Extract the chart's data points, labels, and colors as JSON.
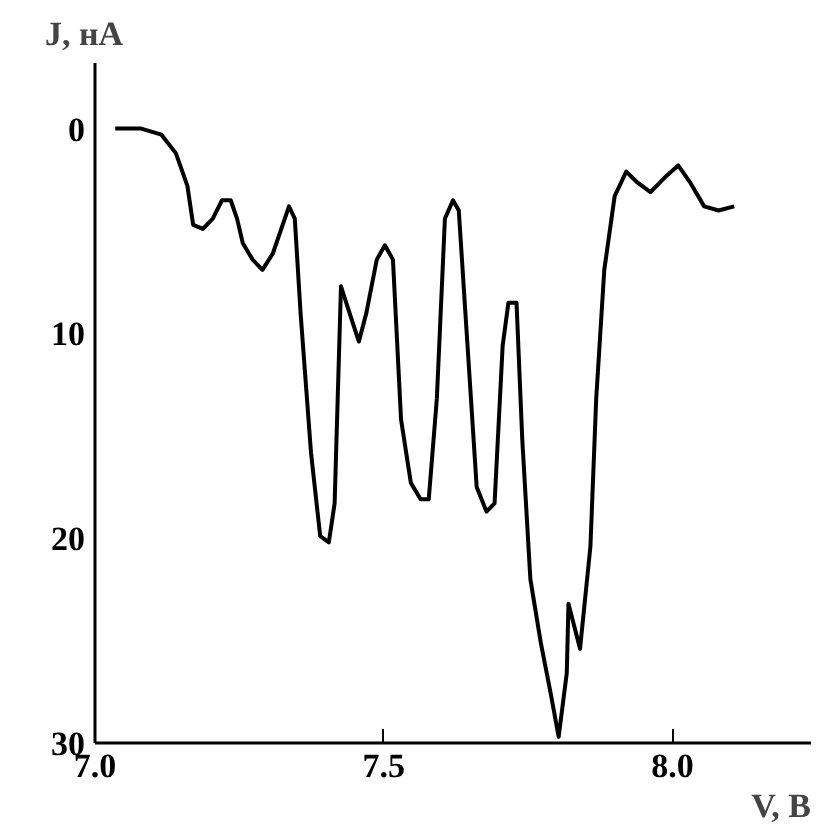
{
  "chart_data": {
    "type": "line",
    "xlabel": "V, В",
    "ylabel": "J, нА",
    "xlim": [
      7.0,
      8.24
    ],
    "ylim": [
      30,
      -3.2
    ],
    "xticks": [
      {
        "value": 7.0,
        "label": "7.0"
      },
      {
        "value": 7.5,
        "label": "7.5"
      },
      {
        "value": 8.0,
        "label": "8.0"
      }
    ],
    "yticks": [
      0,
      10,
      20,
      30
    ],
    "grid": false,
    "marker": "none",
    "line_style": "solid",
    "series": [
      {
        "color": "#000000",
        "x": [
          7.035,
          7.08,
          7.115,
          7.14,
          7.16,
          7.17,
          7.187,
          7.204,
          7.22,
          7.235,
          7.246,
          7.256,
          7.273,
          7.29,
          7.308,
          7.336,
          7.346,
          7.356,
          7.374,
          7.39,
          7.405,
          7.415,
          7.426,
          7.443,
          7.457,
          7.47,
          7.488,
          7.502,
          7.516,
          7.53,
          7.547,
          7.564,
          7.578,
          7.592,
          7.606,
          7.62,
          7.63,
          7.644,
          7.661,
          7.678,
          7.692,
          7.706,
          7.716,
          7.73,
          7.74,
          7.754,
          7.772,
          7.79,
          7.803,
          7.817,
          7.82,
          7.84,
          7.858,
          7.868,
          7.882,
          7.9,
          7.92,
          7.938,
          7.962,
          7.99,
          8.01,
          8.03,
          8.055,
          8.08,
          8.107
        ],
        "values": [
          0,
          0,
          0.3,
          1.2,
          2.8,
          4.7,
          4.9,
          4.4,
          3.5,
          3.5,
          4.4,
          5.6,
          6.4,
          6.9,
          6.1,
          3.8,
          4.4,
          9.0,
          15.8,
          19.9,
          20.2,
          18.3,
          7.7,
          9.2,
          10.4,
          9.0,
          6.4,
          5.7,
          6.4,
          14.2,
          17.3,
          18.1,
          18.1,
          13.2,
          4.4,
          3.5,
          4.0,
          10.1,
          17.5,
          18.7,
          18.3,
          10.6,
          8.5,
          8.5,
          15.2,
          22.0,
          25.1,
          27.7,
          29.7,
          26.6,
          23.2,
          25.4,
          20.4,
          13.2,
          6.9,
          3.3,
          2.1,
          2.6,
          3.1,
          2.3,
          1.8,
          2.6,
          3.8,
          4.0,
          3.8
        ]
      }
    ]
  }
}
